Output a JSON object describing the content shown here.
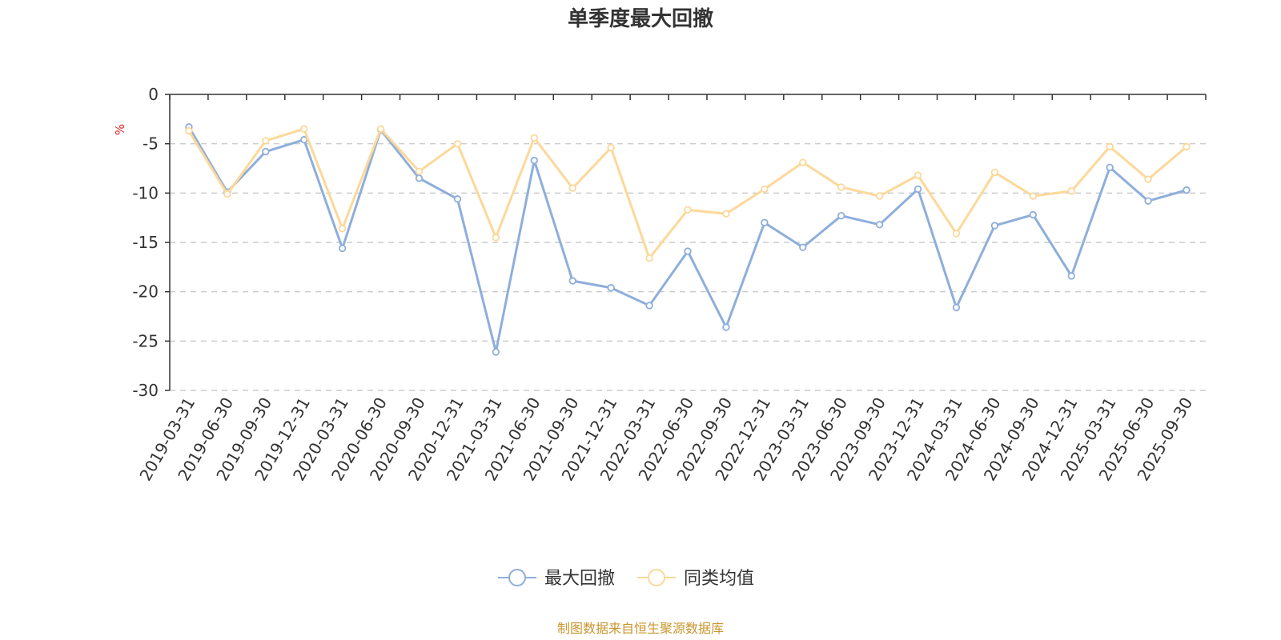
{
  "chart_data": {
    "type": "line",
    "title": "单季度最大回撤",
    "ylabel": "%",
    "ylim": [
      -30,
      0
    ],
    "yticks": [
      0,
      -5,
      -10,
      -15,
      -20,
      -25,
      -30
    ],
    "grid": true,
    "legend_position": "bottom",
    "x": [
      "2019-03-31",
      "2019-06-30",
      "2019-09-30",
      "2019-12-31",
      "2020-03-31",
      "2020-06-30",
      "2020-09-30",
      "2020-12-31",
      "2021-03-31",
      "2021-06-30",
      "2021-09-30",
      "2021-12-31",
      "2022-03-31",
      "2022-06-30",
      "2022-09-30",
      "2022-12-31",
      "2023-03-31",
      "2023-06-30",
      "2023-09-30",
      "2023-12-31",
      "2024-03-31",
      "2024-06-30",
      "2024-09-30",
      "2024-12-31",
      "2025-03-31",
      "2025-06-30",
      "2025-09-30"
    ],
    "series": [
      {
        "name": "最大回撤",
        "color": "#8eaedb",
        "values": [
          -3.3,
          -9.9,
          -5.8,
          -4.6,
          -15.6,
          -3.6,
          -8.5,
          -10.6,
          -26.1,
          -6.7,
          -18.9,
          -19.6,
          -21.4,
          -15.9,
          -23.6,
          -13.0,
          -15.5,
          -12.3,
          -13.2,
          -9.6,
          -21.6,
          -13.3,
          -12.2,
          -18.4,
          -7.4,
          -10.8,
          -9.7
        ]
      },
      {
        "name": "同类均值",
        "color": "#fcd89a",
        "values": [
          -3.7,
          -10.1,
          -4.7,
          -3.5,
          -13.6,
          -3.5,
          -7.8,
          -5.0,
          -14.5,
          -4.4,
          -9.5,
          -5.4,
          -16.6,
          -11.7,
          -12.1,
          -9.6,
          -6.9,
          -9.4,
          -10.3,
          -8.2,
          -14.1,
          -7.9,
          -10.3,
          -9.8,
          -5.3,
          -8.6,
          -5.3
        ]
      }
    ]
  },
  "footer": {
    "source": "制图数据来自恒生聚源数据库"
  }
}
